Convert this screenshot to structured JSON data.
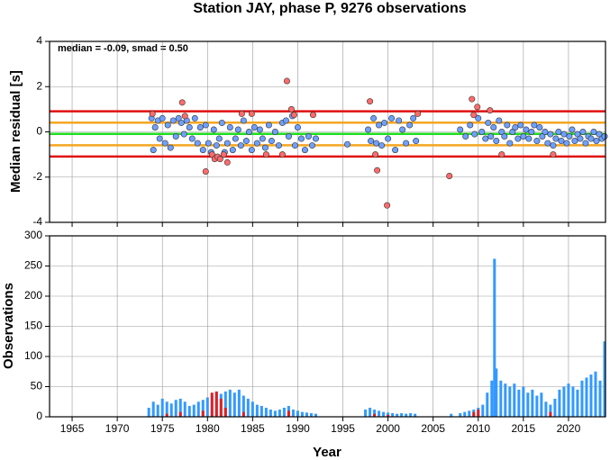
{
  "chart_data": [
    {
      "type": "scatter",
      "title": "Station JAY, phase P, 9276 observations",
      "y_label": "Median residual [s]",
      "annotation": "median = -0.09, smad = 0.50",
      "xlim": [
        1962.5,
        2024.1
      ],
      "xticks": [
        1965,
        1970,
        1975,
        1980,
        1985,
        1990,
        1995,
        2000,
        2005,
        2010,
        2015,
        2020
      ],
      "ylim": [
        -4,
        4
      ],
      "yticks": [
        -4,
        -2,
        0,
        2,
        4
      ],
      "grid": true,
      "reference_lines": [
        {
          "value": 0.91,
          "color": "#e01010"
        },
        {
          "value": -1.09,
          "color": "#e01010"
        },
        {
          "value": 0.41,
          "color": "#f5a623"
        },
        {
          "value": -0.59,
          "color": "#f5a623"
        },
        {
          "value": -0.09,
          "color": "#22dd22"
        }
      ],
      "series": [
        {
          "color": "#6ea0ff",
          "x": [
            1973.8,
            1974.0,
            1974.2,
            1974.5,
            1974.7,
            1975.0,
            1975.3,
            1975.6,
            1975.9,
            1976.2,
            1976.5,
            1976.8,
            1977.1,
            1977.4,
            1977.7,
            1978.0,
            1978.3,
            1978.6,
            1978.9,
            1979.2,
            1979.5,
            1979.8,
            1980.1,
            1980.4,
            1980.7,
            1981.0,
            1981.3,
            1981.6,
            1981.9,
            1982.2,
            1982.5,
            1982.8,
            1983.1,
            1983.4,
            1983.7,
            1984.0,
            1984.3,
            1984.6,
            1984.9,
            1985.2,
            1985.5,
            1985.8,
            1986.1,
            1986.4,
            1986.8,
            1987.1,
            1987.5,
            1987.9,
            1988.3,
            1988.7,
            1989.0,
            1989.4,
            1989.7,
            1990.0,
            1990.4,
            1990.8,
            1991.2,
            1991.6,
            1992.0,
            1995.5,
            1997.8,
            1998.1,
            1998.4,
            1998.7,
            1999.0,
            1999.3,
            1999.6,
            2000.0,
            2000.4,
            2000.8,
            2001.2,
            2001.6,
            2002.0,
            2002.4,
            2002.8,
            2003.1,
            2008.0,
            2008.6,
            2009.1,
            2009.6,
            2010.0,
            2010.4,
            2010.8,
            2011.1,
            2011.4,
            2011.7,
            2012.0,
            2012.3,
            2012.6,
            2012.9,
            2013.2,
            2013.5,
            2013.8,
            2014.1,
            2014.4,
            2014.7,
            2015.0,
            2015.3,
            2015.6,
            2015.9,
            2016.2,
            2016.5,
            2016.8,
            2017.1,
            2017.4,
            2017.7,
            2018.0,
            2018.3,
            2018.6,
            2018.9,
            2019.2,
            2019.5,
            2019.8,
            2020.1,
            2020.4,
            2020.7,
            2021.0,
            2021.3,
            2021.6,
            2021.9,
            2022.2,
            2022.5,
            2022.8,
            2023.1,
            2023.4,
            2023.7,
            2024.0
          ],
          "values": [
            0.6,
            -0.8,
            0.2,
            0.5,
            -0.3,
            0.6,
            -0.5,
            0.3,
            -0.7,
            0.5,
            -0.2,
            0.6,
            0.4,
            -0.1,
            0.5,
            0.2,
            -0.3,
            0.6,
            -0.5,
            0.2,
            -0.8,
            0.3,
            -0.5,
            -0.9,
            0.1,
            -0.6,
            -0.3,
            0.4,
            -0.9,
            -0.5,
            0.2,
            -0.8,
            -0.3,
            0.1,
            -0.6,
            0.5,
            -0.4,
            0.0,
            -0.8,
            0.2,
            -0.5,
            0.1,
            -0.3,
            -0.7,
            0.3,
            -0.4,
            0.0,
            -0.6,
            0.4,
            0.5,
            -0.2,
            0.7,
            -0.6,
            0.2,
            -0.3,
            -0.8,
            -0.2,
            -0.6,
            -0.3,
            -0.55,
            0.1,
            -0.4,
            0.6,
            -0.5,
            0.3,
            -0.6,
            0.4,
            -0.3,
            0.6,
            -0.8,
            0.5,
            0.1,
            -0.5,
            0.3,
            0.6,
            -0.4,
            0.1,
            -0.2,
            0.3,
            -0.1,
            0.6,
            0.0,
            -0.3,
            0.4,
            -0.2,
            0.2,
            -0.4,
            0.5,
            0.0,
            -0.2,
            0.3,
            -0.5,
            0.0,
            0.2,
            -0.3,
            0.3,
            -0.2,
            0.1,
            -0.3,
            0.0,
            0.3,
            -0.4,
            0.2,
            -0.2,
            0.0,
            -0.5,
            -0.1,
            -0.6,
            -0.3,
            0.0,
            -0.4,
            -0.1,
            -0.5,
            -0.2,
            0.1,
            -0.4,
            -0.1,
            -0.3,
            0.0,
            -0.5,
            -0.2,
            -0.3,
            0.0,
            -0.4,
            -0.1,
            -0.3,
            -0.2
          ]
        },
        {
          "color": "#ff6b6b",
          "x": [
            1973.9,
            1977.2,
            1977.5,
            1979.8,
            1980.5,
            1980.8,
            1981.1,
            1981.4,
            1981.8,
            1982.2,
            1983.8,
            1984.9,
            1986.5,
            1988.3,
            1988.8,
            1989.3,
            1989.6,
            1991.7,
            1998.0,
            1998.6,
            1998.8,
            1999.9,
            2003.3,
            2006.8,
            2009.3,
            2009.5,
            2009.9,
            2011.3,
            2012.6,
            2018.3
          ],
          "values": [
            0.8,
            1.3,
            0.7,
            -1.75,
            -1.0,
            -1.2,
            -1.1,
            -1.2,
            -1.0,
            -1.35,
            0.8,
            0.8,
            -1.0,
            -1.0,
            2.25,
            1.0,
            0.75,
            0.75,
            1.35,
            -1.0,
            -1.7,
            -3.25,
            0.8,
            -1.95,
            1.45,
            0.75,
            1.1,
            0.95,
            -1.0,
            -1.0
          ]
        }
      ]
    },
    {
      "type": "bar",
      "x_label": "Year",
      "y_label": "Observations",
      "xlim": [
        1962.5,
        2024.1
      ],
      "xticks": [
        1965,
        1970,
        1975,
        1980,
        1985,
        1990,
        1995,
        2000,
        2005,
        2010,
        2015,
        2020
      ],
      "ylim": [
        0,
        300
      ],
      "yticks": [
        0,
        50,
        100,
        150,
        200,
        250,
        300
      ],
      "grid": true,
      "series": [
        {
          "color": "#3399ff",
          "x": [
            1973.5,
            1974,
            1974.5,
            1975,
            1975.5,
            1976,
            1976.5,
            1977,
            1977.5,
            1978,
            1978.5,
            1979,
            1979.5,
            1980,
            1980.5,
            1981,
            1981.5,
            1982,
            1982.5,
            1983,
            1983.5,
            1984,
            1984.5,
            1985,
            1985.5,
            1986,
            1986.5,
            1987,
            1987.5,
            1988,
            1988.5,
            1989,
            1989.5,
            1990,
            1990.5,
            1991,
            1991.5,
            1992,
            1997.5,
            1998,
            1998.5,
            1999,
            1999.5,
            2000,
            2000.5,
            2001,
            2001.5,
            2002,
            2002.5,
            2003,
            2007,
            2008,
            2008.5,
            2009,
            2009.5,
            2010,
            2010.5,
            2011,
            2011.5,
            2011.8,
            2012,
            2012.5,
            2013,
            2013.5,
            2014,
            2014.5,
            2015,
            2015.5,
            2016,
            2016.5,
            2017,
            2017.5,
            2018,
            2018.5,
            2019,
            2019.5,
            2020,
            2020.5,
            2021,
            2021.5,
            2022,
            2022.5,
            2023,
            2023.5,
            2024
          ],
          "values": [
            15,
            25,
            20,
            30,
            25,
            22,
            28,
            30,
            25,
            18,
            20,
            25,
            28,
            32,
            35,
            40,
            38,
            42,
            45,
            40,
            45,
            35,
            30,
            25,
            20,
            18,
            15,
            12,
            10,
            12,
            15,
            18,
            12,
            10,
            8,
            7,
            6,
            5,
            12,
            15,
            12,
            10,
            8,
            7,
            6,
            5,
            6,
            5,
            6,
            5,
            5,
            6,
            8,
            10,
            12,
            15,
            20,
            40,
            60,
            262,
            80,
            60,
            55,
            50,
            55,
            45,
            50,
            40,
            45,
            35,
            40,
            25,
            20,
            30,
            45,
            50,
            55,
            50,
            45,
            60,
            65,
            70,
            75,
            60,
            125
          ]
        },
        {
          "color": "#e02020",
          "x": [
            1975.5,
            1977,
            1979.5,
            1980.5,
            1981,
            1981.5,
            1982,
            1984,
            1989,
            1998.5,
            2000,
            2009.5,
            2010,
            2018
          ],
          "values": [
            5,
            8,
            10,
            40,
            42,
            30,
            15,
            8,
            10,
            5,
            3,
            8,
            12,
            8
          ]
        }
      ]
    }
  ]
}
